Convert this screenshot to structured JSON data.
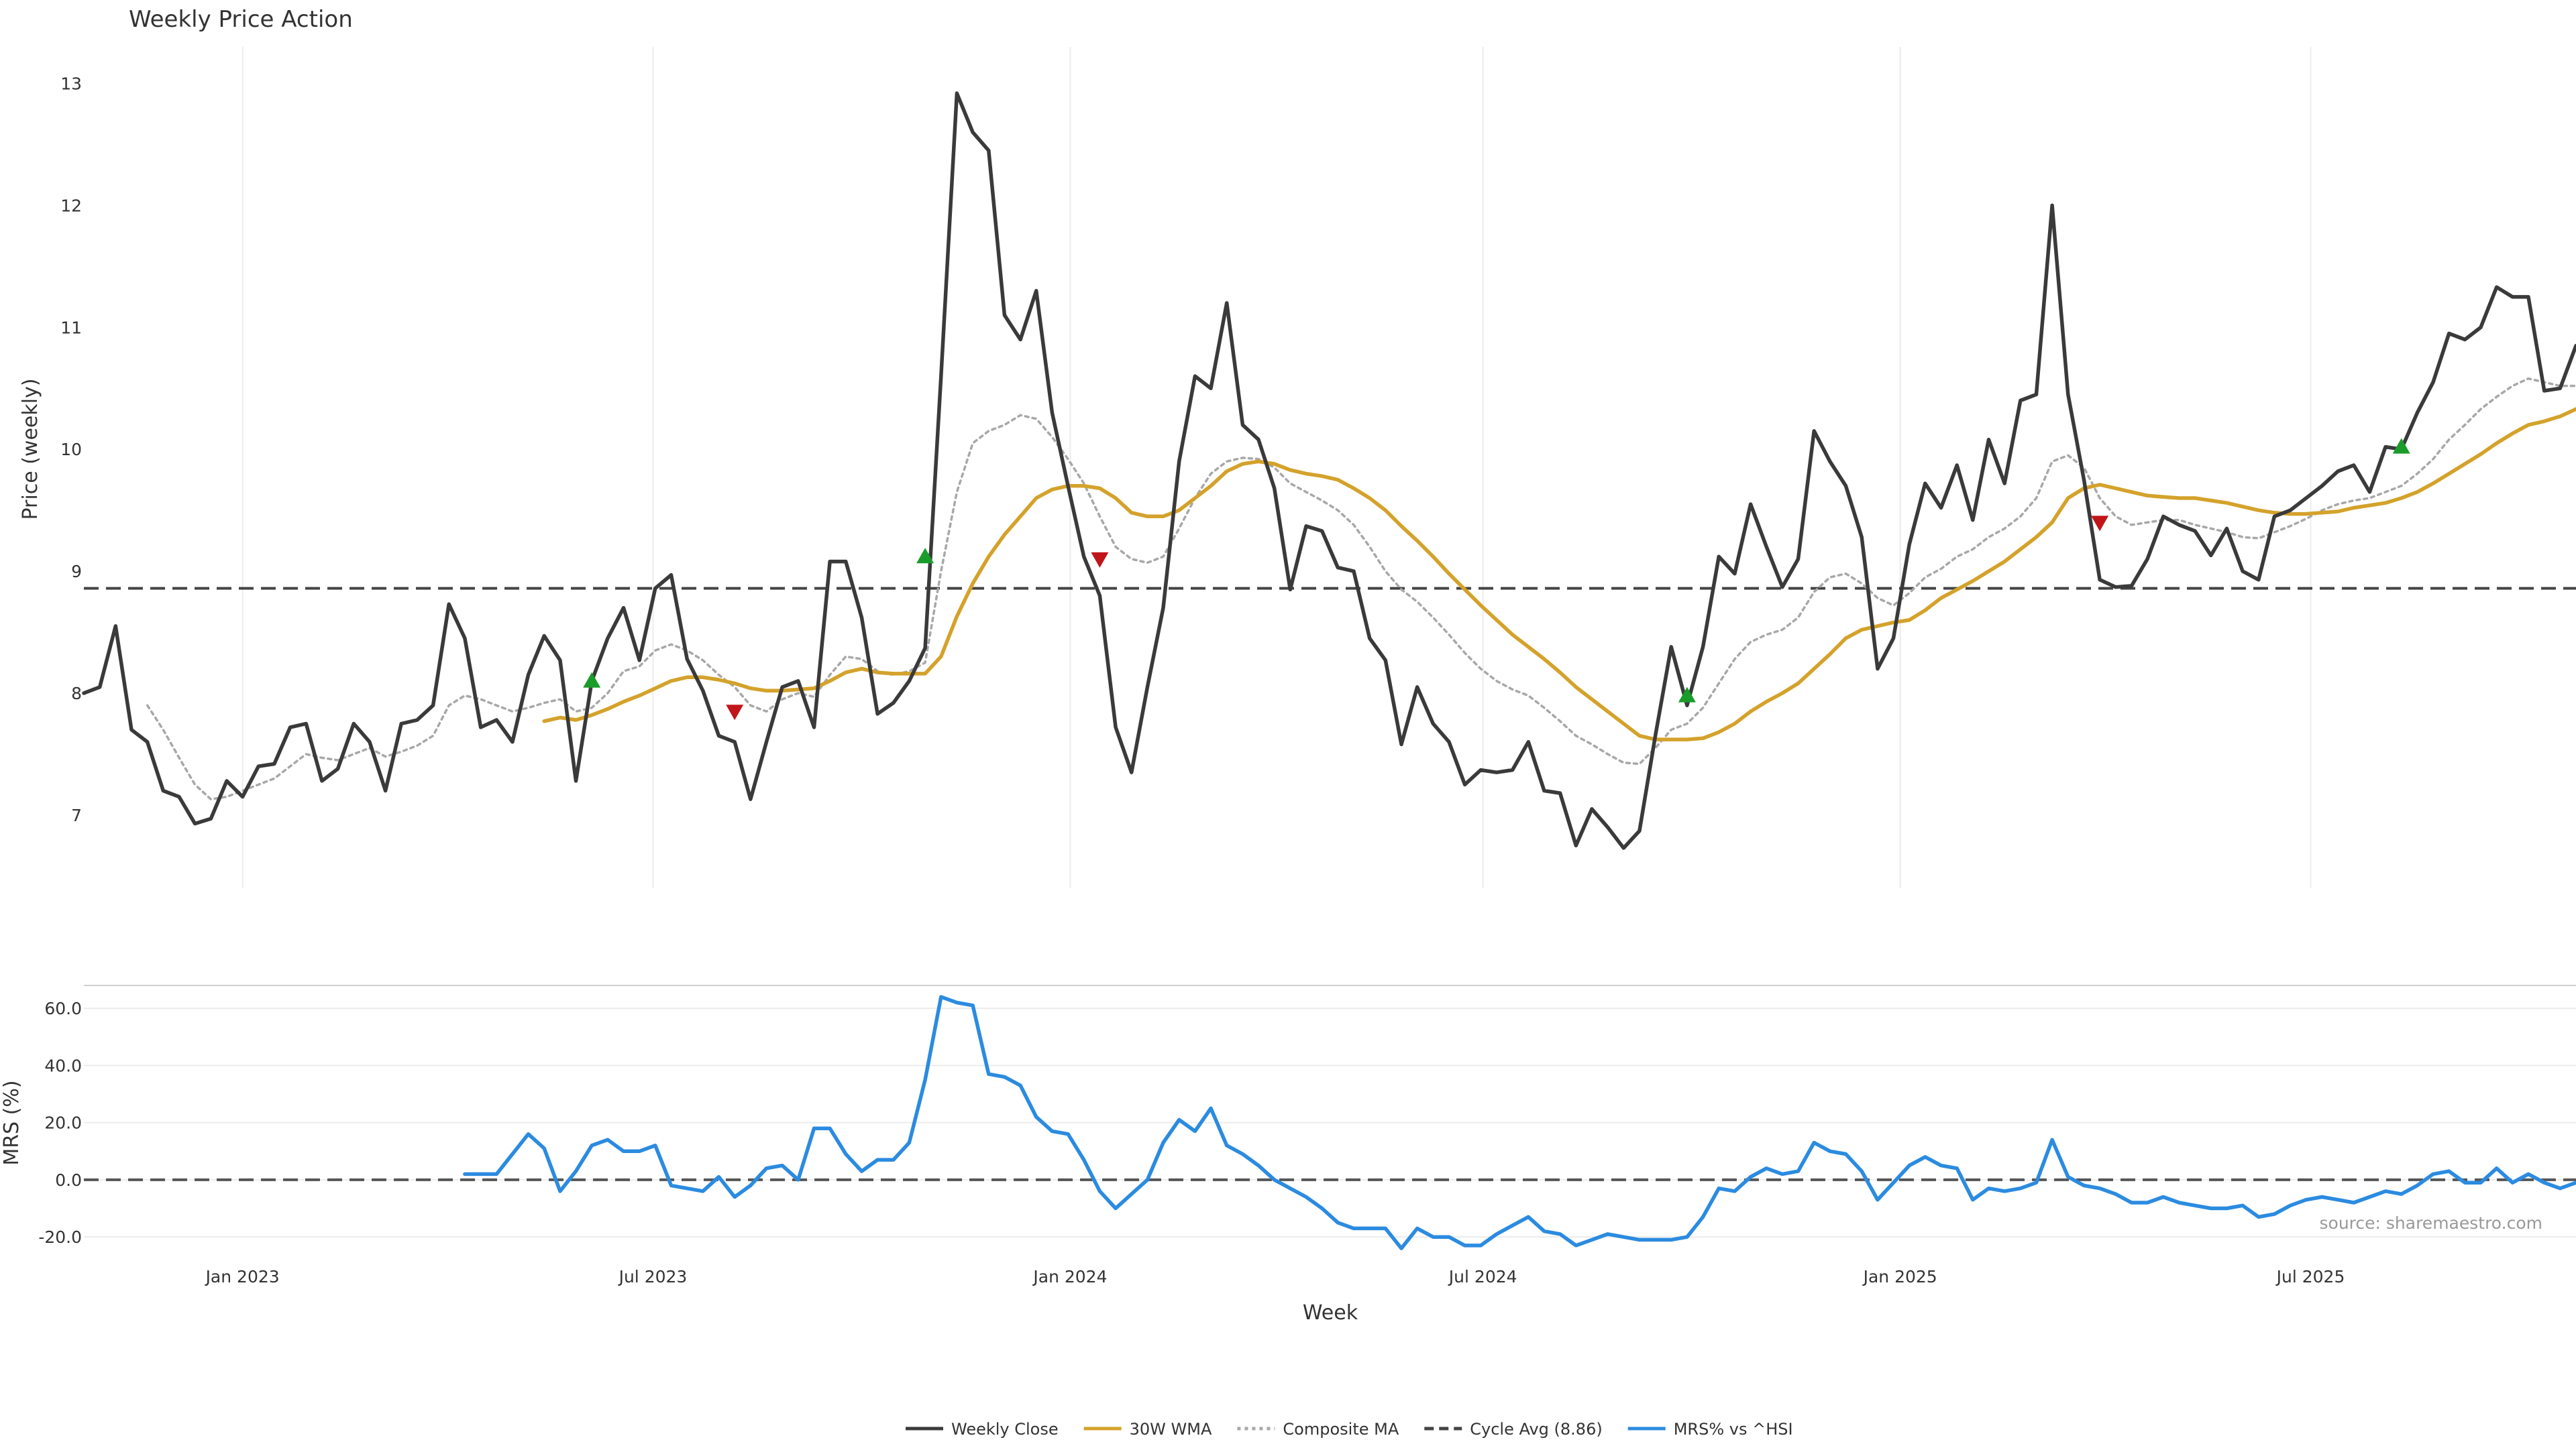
{
  "chart_data": [
    {
      "type": "line",
      "title": "Weekly Price Action",
      "xlabel": "",
      "ylabel": "Price (weekly)",
      "ylim": [
        6.4,
        13.3
      ],
      "x_ticks": [
        "Jan 2023",
        "Jul 2023",
        "Jan 2024",
        "Jul 2024",
        "Jan 2025",
        "Jul 2025"
      ],
      "y_ticks": [
        "7",
        "8",
        "9",
        "10",
        "11",
        "12",
        "13"
      ],
      "grid": "vertical",
      "x_start": "2022-10-23",
      "series": [
        {
          "name": "Weekly Close",
          "color": "#3a3a3a",
          "style": "solid",
          "values": [
            8.0,
            8.05,
            8.55,
            7.7,
            7.6,
            7.2,
            7.15,
            6.93,
            6.97,
            7.28,
            7.15,
            7.4,
            7.42,
            7.72,
            7.75,
            7.28,
            7.38,
            7.75,
            7.6,
            7.2,
            7.75,
            7.78,
            7.9,
            8.73,
            8.45,
            7.72,
            7.78,
            7.6,
            8.15,
            8.47,
            8.27,
            7.28,
            8.1,
            8.45,
            8.7,
            8.27,
            8.86,
            8.97,
            8.28,
            8.02,
            7.65,
            7.6,
            7.13,
            7.6,
            8.05,
            8.1,
            7.72,
            9.08,
            9.08,
            8.62,
            7.83,
            7.92,
            8.1,
            8.37,
            10.6,
            12.92,
            12.6,
            12.45,
            11.1,
            10.9,
            11.3,
            10.3,
            9.7,
            9.12,
            8.8,
            7.72,
            7.35,
            8.05,
            8.7,
            9.9,
            10.6,
            10.5,
            11.2,
            10.2,
            10.08,
            9.68,
            8.85,
            9.37,
            9.33,
            9.03,
            9.0,
            8.45,
            8.27,
            7.58,
            8.05,
            7.75,
            7.6,
            7.25,
            7.37,
            7.35,
            7.37,
            7.6,
            7.2,
            7.18,
            6.75,
            7.05,
            6.9,
            6.73,
            6.87,
            7.65,
            8.38,
            7.9,
            8.38,
            9.12,
            8.98,
            9.55,
            9.2,
            8.87,
            9.1,
            10.15,
            9.9,
            9.7,
            9.28,
            8.2,
            8.45,
            9.22,
            9.72,
            9.52,
            9.87,
            9.42,
            10.08,
            9.72,
            10.4,
            10.45,
            12.0,
            10.45,
            9.75,
            8.93,
            8.87,
            8.88,
            9.1,
            9.45,
            9.38,
            9.33,
            9.13,
            9.35,
            9.0,
            8.93,
            9.45,
            9.5,
            9.6,
            9.7,
            9.82,
            9.87,
            9.65,
            10.02,
            10.0,
            10.3,
            10.55,
            10.95,
            10.9,
            11.0,
            11.33,
            11.25,
            11.25,
            10.48,
            10.5,
            10.85
          ]
        },
        {
          "name": "30W WMA",
          "color": "#d4a22b",
          "style": "solid",
          "values": [
            null,
            null,
            null,
            null,
            null,
            null,
            null,
            null,
            null,
            null,
            null,
            null,
            null,
            null,
            null,
            null,
            null,
            null,
            null,
            null,
            null,
            null,
            null,
            null,
            null,
            null,
            null,
            null,
            null,
            7.77,
            7.8,
            7.78,
            7.82,
            7.87,
            7.93,
            7.98,
            8.04,
            8.1,
            8.13,
            8.13,
            8.11,
            8.08,
            8.04,
            8.02,
            8.02,
            8.03,
            8.04,
            8.1,
            8.17,
            8.2,
            8.17,
            8.16,
            8.16,
            8.16,
            8.3,
            8.63,
            8.9,
            9.12,
            9.3,
            9.45,
            9.6,
            9.67,
            9.7,
            9.7,
            9.68,
            9.6,
            9.48,
            9.45,
            9.45,
            9.5,
            9.6,
            9.7,
            9.82,
            9.88,
            9.9,
            9.88,
            9.83,
            9.8,
            9.78,
            9.75,
            9.68,
            9.6,
            9.5,
            9.37,
            9.25,
            9.12,
            8.98,
            8.85,
            8.72,
            8.6,
            8.48,
            8.38,
            8.28,
            8.17,
            8.05,
            7.95,
            7.85,
            7.75,
            7.65,
            7.62,
            7.62,
            7.62,
            7.63,
            7.68,
            7.75,
            7.85,
            7.93,
            8.0,
            8.08,
            8.2,
            8.32,
            8.45,
            8.52,
            8.55,
            8.58,
            8.6,
            8.68,
            8.78,
            8.85,
            8.92,
            9.0,
            9.08,
            9.18,
            9.28,
            9.4,
            9.6,
            9.68,
            9.71,
            9.68,
            9.65,
            9.62,
            9.61,
            9.6,
            9.6,
            9.58,
            9.56,
            9.53,
            9.5,
            9.48,
            9.47,
            9.47,
            9.48,
            9.49,
            9.52,
            9.54,
            9.56,
            9.6,
            9.65,
            9.72,
            9.8,
            9.88,
            9.96,
            10.05,
            10.13,
            10.2,
            10.23,
            10.27,
            10.33
          ]
        },
        {
          "name": "Composite MA",
          "color": "#a8a8a8",
          "style": "dotted",
          "values": [
            null,
            null,
            null,
            null,
            7.9,
            7.7,
            7.47,
            7.25,
            7.13,
            7.15,
            7.2,
            7.25,
            7.3,
            7.4,
            7.5,
            7.47,
            7.45,
            7.5,
            7.55,
            7.48,
            7.52,
            7.57,
            7.65,
            7.9,
            7.98,
            7.95,
            7.9,
            7.85,
            7.88,
            7.92,
            7.95,
            7.85,
            7.88,
            8.0,
            8.18,
            8.22,
            8.35,
            8.4,
            8.35,
            8.27,
            8.15,
            8.05,
            7.9,
            7.85,
            7.95,
            8.0,
            7.97,
            8.15,
            8.3,
            8.28,
            8.18,
            8.15,
            8.18,
            8.25,
            9.0,
            9.65,
            10.05,
            10.15,
            10.2,
            10.28,
            10.25,
            10.1,
            9.92,
            9.72,
            9.45,
            9.2,
            9.1,
            9.07,
            9.12,
            9.35,
            9.6,
            9.8,
            9.9,
            9.93,
            9.92,
            9.85,
            9.72,
            9.65,
            9.58,
            9.5,
            9.38,
            9.2,
            9.0,
            8.85,
            8.75,
            8.62,
            8.48,
            8.33,
            8.2,
            8.1,
            8.03,
            7.98,
            7.88,
            7.77,
            7.65,
            7.58,
            7.5,
            7.43,
            7.42,
            7.55,
            7.7,
            7.75,
            7.88,
            8.08,
            8.28,
            8.42,
            8.48,
            8.52,
            8.62,
            8.83,
            8.95,
            8.98,
            8.9,
            8.78,
            8.72,
            8.82,
            8.95,
            9.02,
            9.12,
            9.18,
            9.28,
            9.35,
            9.45,
            9.6,
            9.9,
            9.95,
            9.85,
            9.6,
            9.45,
            9.38,
            9.4,
            9.42,
            9.42,
            9.38,
            9.35,
            9.32,
            9.28,
            9.27,
            9.32,
            9.37,
            9.43,
            9.5,
            9.55,
            9.58,
            9.6,
            9.65,
            9.7,
            9.8,
            9.92,
            10.08,
            10.2,
            10.33,
            10.43,
            10.52,
            10.58,
            10.55,
            10.52,
            10.52
          ]
        },
        {
          "name": "Cycle Avg (8.86)",
          "color": "#444444",
          "style": "dashed",
          "y": 8.86
        }
      ],
      "signals_up": [
        {
          "week": 32,
          "y": 8.1
        },
        {
          "week": 53,
          "y": 9.12
        },
        {
          "week": 101,
          "y": 7.98
        },
        {
          "week": 146,
          "y": 10.02
        }
      ],
      "signals_down": [
        {
          "week": 41,
          "y": 7.85
        },
        {
          "week": 64,
          "y": 9.1
        },
        {
          "week": 127,
          "y": 9.4
        }
      ]
    },
    {
      "type": "line",
      "xlabel": "Week",
      "ylabel": "MRS (%)",
      "ylim": [
        -27,
        68
      ],
      "y_ticks": [
        "60.0",
        "40.0",
        "20.0",
        "0.0",
        "-20.0"
      ],
      "x_ticks": [
        "Jan 2023",
        "Jul 2023",
        "Jan 2024",
        "Jul 2024",
        "Jan 2025",
        "Jul 2025"
      ],
      "grid": "horizontal",
      "series": [
        {
          "name": "MRS% vs ^HSI",
          "color": "#2b8be0",
          "style": "solid",
          "values": [
            null,
            null,
            null,
            null,
            null,
            null,
            null,
            null,
            null,
            null,
            null,
            null,
            null,
            null,
            null,
            null,
            null,
            null,
            null,
            null,
            null,
            null,
            null,
            null,
            2,
            2,
            2,
            9,
            16,
            11,
            -4,
            3,
            12,
            14,
            10,
            10,
            12,
            -2,
            -3,
            -4,
            1,
            -6,
            -2,
            4,
            5,
            0,
            18,
            18,
            9,
            3,
            7,
            7,
            13,
            35,
            64,
            62,
            61,
            37,
            36,
            33,
            22,
            17,
            16,
            7,
            -4,
            -10,
            -5,
            0,
            13,
            21,
            17,
            25,
            12,
            9,
            5,
            0,
            -3,
            -6,
            -10,
            -15,
            -17,
            -17,
            -17,
            -24,
            -17,
            -20,
            -20,
            -23,
            -23,
            -19,
            -16,
            -13,
            -18,
            -19,
            -23,
            -21,
            -19,
            -20,
            -21,
            -21,
            -21,
            -20,
            -13,
            -3,
            -4,
            1,
            4,
            2,
            3,
            13,
            10,
            9,
            3,
            -7,
            -1,
            5,
            8,
            5,
            4,
            -7,
            -3,
            -4,
            -3,
            -1,
            14,
            1,
            -2,
            -3,
            -5,
            -8,
            -8,
            -6,
            -8,
            -9,
            -10,
            -10,
            -9,
            -13,
            -12,
            -9,
            -7,
            -6,
            -7,
            -8,
            -6,
            -4,
            -5,
            -2,
            2,
            3,
            -1,
            -1,
            4,
            -1,
            2,
            -1,
            -3,
            -1
          ]
        },
        {
          "name": "",
          "color": "#555555",
          "style": "dashed",
          "y": 0
        }
      ]
    }
  ],
  "legend": [
    {
      "label": "Weekly Close",
      "color": "#3a3a3a",
      "style": "solid"
    },
    {
      "label": "30W WMA",
      "color": "#d4a22b",
      "style": "solid"
    },
    {
      "label": "Composite MA",
      "color": "#a8a8a8",
      "style": "dotted"
    },
    {
      "label": "Cycle Avg (8.86)",
      "color": "#444444",
      "style": "dashed"
    },
    {
      "label": "MRS% vs ^HSI",
      "color": "#2b8be0",
      "style": "solid"
    }
  ],
  "legend_position": "bottom-center",
  "source_text": "source: sharemaestro.com",
  "signal_colors": {
    "up": "#1a9c2a",
    "down": "#c0161a"
  }
}
